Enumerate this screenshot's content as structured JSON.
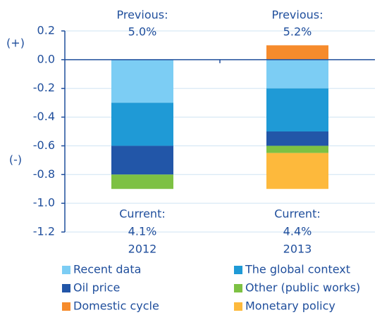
{
  "chart_data": {
    "type": "stacked_bar",
    "categories": [
      "2012",
      "2013"
    ],
    "series": [
      {
        "name": "Recent data",
        "color": "#7ccdf4",
        "values": [
          -0.3,
          -0.2
        ]
      },
      {
        "name": "The global context",
        "color": "#1f9ad6",
        "values": [
          -0.3,
          -0.3
        ]
      },
      {
        "name": "Oil price",
        "color": "#2256a8",
        "values": [
          -0.2,
          -0.1
        ]
      },
      {
        "name": "Other (public works)",
        "color": "#7dc143",
        "values": [
          -0.1,
          -0.05
        ]
      },
      {
        "name": "Domestic cycle",
        "color": "#f68b2c",
        "values": [
          0,
          0.1
        ]
      },
      {
        "name": "Monetary policy",
        "color": "#fdb93c",
        "values": [
          0,
          -0.25
        ]
      }
    ],
    "ylim": [
      -1.2,
      0.2
    ],
    "yticks": [
      {
        "value": 0.2,
        "label": "0.2"
      },
      {
        "value": 0,
        "label": "0.0"
      },
      {
        "value": -0.2,
        "label": "-0.2"
      },
      {
        "value": -0.4,
        "label": "-0.4"
      },
      {
        "value": -0.6,
        "label": "-0.6"
      },
      {
        "value": -0.8,
        "label": "-0.8"
      },
      {
        "value": -1,
        "label": "-1.0"
      },
      {
        "value": -1.2,
        "label": "-1.2"
      }
    ],
    "y_axis_signs": [
      "(+)",
      "(-)"
    ],
    "top_annotations": [
      [
        "Previous:",
        "5.0%"
      ],
      [
        "Previous:",
        "5.2%"
      ]
    ],
    "bottom_annotations": [
      [
        "Current:",
        "4.1%"
      ],
      [
        "Current:",
        "4.4%"
      ]
    ],
    "grid": true
  }
}
